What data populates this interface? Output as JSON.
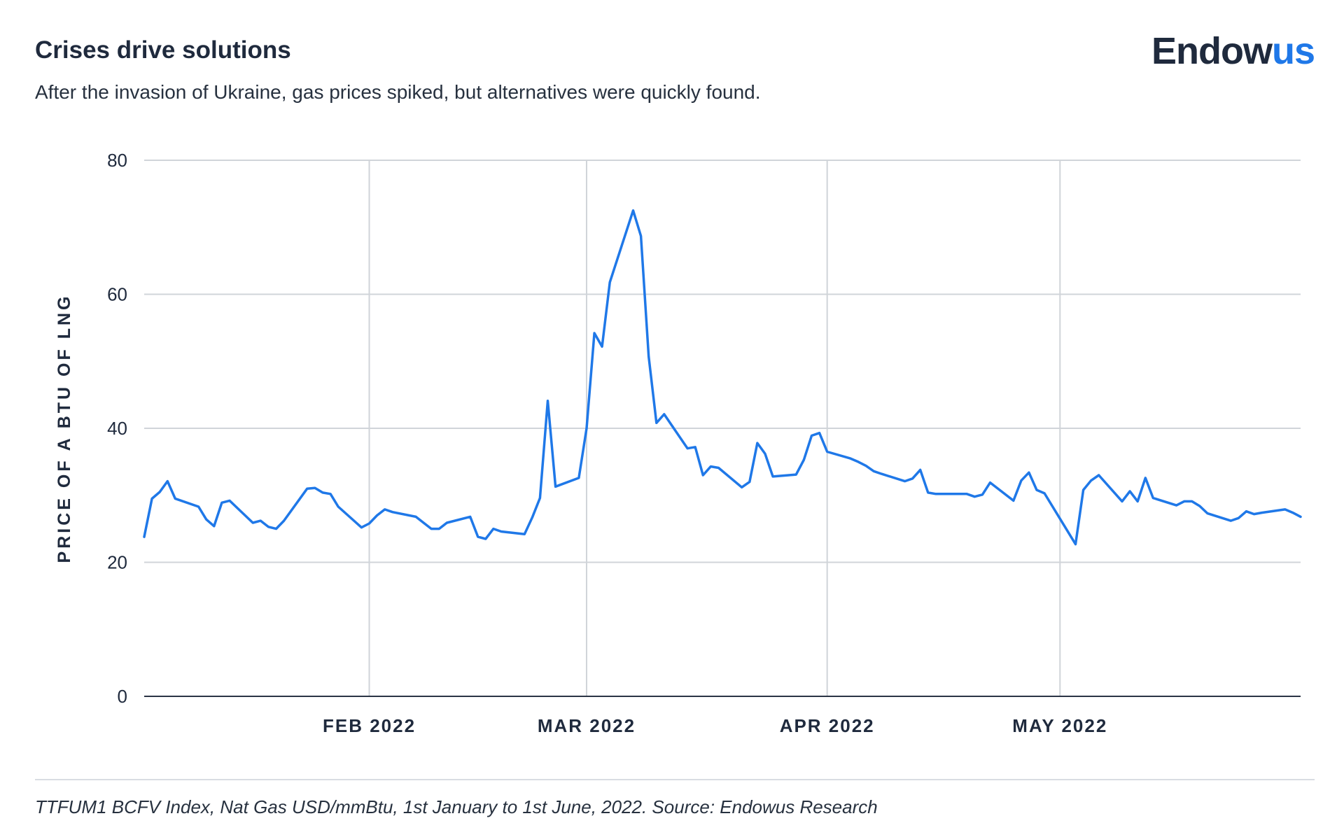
{
  "header": {
    "title": "Crises drive solutions",
    "subtitle": "After the invasion of Ukraine, gas prices spiked, but alternatives were quickly found.",
    "logo_main": "Endow",
    "logo_accent": "us"
  },
  "footnote": "TTFUM1 BCFV Index, Nat Gas USD/mmBtu, 1st January to 1st June, 2022. Source: Endowus Research",
  "colors": {
    "line": "#1f78e8",
    "grid": "#d0d4d9",
    "axis": "#2b3445",
    "text": "#1f2a3d"
  },
  "chart_data": {
    "type": "line",
    "ylabel": "PRICE OF A BTU OF LNG",
    "ylim": [
      0,
      80
    ],
    "yticks": [
      0,
      20,
      40,
      60,
      80
    ],
    "xlim": [
      "2022-01-03",
      "2022-06-01"
    ],
    "xticks": [
      {
        "date": "2022-02-01",
        "label": "FEB 2022"
      },
      {
        "date": "2022-03-01",
        "label": "MAR 2022"
      },
      {
        "date": "2022-04-01",
        "label": "APR 2022"
      },
      {
        "date": "2022-05-01",
        "label": "MAY 2022"
      }
    ],
    "series": [
      {
        "x": [
          "2022-01-03",
          "2022-01-04",
          "2022-01-05",
          "2022-01-06",
          "2022-01-07",
          "2022-01-10",
          "2022-01-11",
          "2022-01-12",
          "2022-01-13",
          "2022-01-14",
          "2022-01-17",
          "2022-01-18",
          "2022-01-19",
          "2022-01-20",
          "2022-01-21",
          "2022-01-24",
          "2022-01-25",
          "2022-01-26",
          "2022-01-27",
          "2022-01-28",
          "2022-01-31",
          "2022-02-01",
          "2022-02-02",
          "2022-02-03",
          "2022-02-04",
          "2022-02-07",
          "2022-02-08",
          "2022-02-09",
          "2022-02-10",
          "2022-02-11",
          "2022-02-14",
          "2022-02-15",
          "2022-02-16",
          "2022-02-17",
          "2022-02-18",
          "2022-02-21",
          "2022-02-22",
          "2022-02-23",
          "2022-02-24",
          "2022-02-25",
          "2022-02-28",
          "2022-03-01",
          "2022-03-02",
          "2022-03-03",
          "2022-03-04",
          "2022-03-07",
          "2022-03-08",
          "2022-03-09",
          "2022-03-10",
          "2022-03-11",
          "2022-03-14",
          "2022-03-15",
          "2022-03-16",
          "2022-03-17",
          "2022-03-18",
          "2022-03-21",
          "2022-03-22",
          "2022-03-23",
          "2022-03-24",
          "2022-03-25",
          "2022-03-28",
          "2022-03-29",
          "2022-03-30",
          "2022-03-31",
          "2022-04-01",
          "2022-04-04",
          "2022-04-05",
          "2022-04-06",
          "2022-04-07",
          "2022-04-08",
          "2022-04-11",
          "2022-04-12",
          "2022-04-13",
          "2022-04-14",
          "2022-04-15",
          "2022-04-19",
          "2022-04-20",
          "2022-04-21",
          "2022-04-22",
          "2022-04-25",
          "2022-04-26",
          "2022-04-27",
          "2022-04-28",
          "2022-04-29",
          "2022-05-03",
          "2022-05-04",
          "2022-05-05",
          "2022-05-06",
          "2022-05-09",
          "2022-05-10",
          "2022-05-11",
          "2022-05-12",
          "2022-05-13",
          "2022-05-16",
          "2022-05-17",
          "2022-05-18",
          "2022-05-19",
          "2022-05-20",
          "2022-05-23",
          "2022-05-24",
          "2022-05-25",
          "2022-05-26",
          "2022-05-27",
          "2022-05-30",
          "2022-05-31",
          "2022-06-01"
        ],
        "y": [
          23.8,
          29.5,
          30.5,
          32.1,
          29.5,
          28.3,
          26.4,
          25.4,
          28.9,
          29.2,
          25.9,
          26.2,
          25.3,
          25.0,
          26.2,
          31.0,
          31.1,
          30.4,
          30.2,
          28.3,
          25.2,
          25.8,
          27.0,
          27.9,
          27.5,
          26.8,
          25.9,
          25.0,
          25.0,
          25.9,
          26.8,
          23.8,
          23.5,
          25.0,
          24.6,
          24.2,
          26.7,
          29.6,
          44.1,
          31.3,
          32.6,
          40.0,
          54.2,
          52.2,
          61.8,
          72.5,
          68.7,
          50.7,
          40.8,
          42.1,
          37.0,
          37.2,
          33.0,
          34.3,
          34.1,
          31.2,
          32.0,
          37.8,
          36.2,
          32.8,
          33.1,
          35.3,
          38.9,
          39.3,
          36.5,
          35.5,
          35.0,
          34.4,
          33.6,
          33.2,
          32.1,
          32.5,
          33.8,
          30.4,
          30.2,
          30.2,
          29.8,
          30.1,
          31.9,
          29.2,
          32.2,
          33.4,
          30.8,
          30.3,
          22.7,
          30.8,
          32.2,
          33.0,
          29.1,
          30.6,
          29.1,
          32.6,
          29.6,
          28.5,
          29.1,
          29.1,
          28.4,
          27.3,
          26.2,
          26.6,
          27.6,
          27.2,
          27.4,
          27.9,
          27.4,
          26.8
        ]
      }
    ]
  }
}
